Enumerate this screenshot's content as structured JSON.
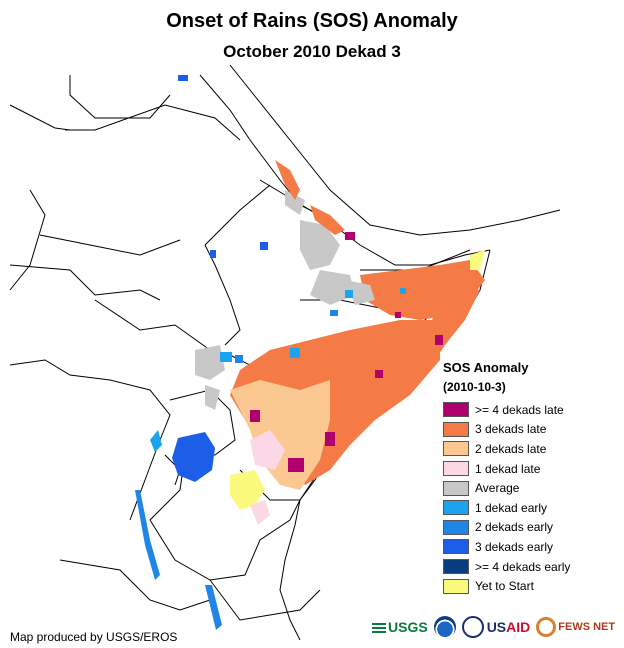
{
  "title": "Onset of Rains (SOS) Anomaly",
  "subtitle": "October 2010 Dekad 3",
  "legend": {
    "title": "SOS Anomaly",
    "date": "(2010-10-3)",
    "items": [
      {
        "label": ">= 4 dekads late",
        "color": "#b0006e"
      },
      {
        "label": "3 dekads late",
        "color": "#f47b46"
      },
      {
        "label": "2 dekads late",
        "color": "#fcc891"
      },
      {
        "label": "1 dekad late",
        "color": "#fcd7e6"
      },
      {
        "label": "Average",
        "color": "#c8c8c8"
      },
      {
        "label": "1 dekad early",
        "color": "#1ba3f0"
      },
      {
        "label": "2 dekads early",
        "color": "#1f86e8"
      },
      {
        "label": "3 dekads early",
        "color": "#1d5ee8"
      },
      {
        "label": ">= 4 dekads early",
        "color": "#0a3c80"
      },
      {
        "label": "Yet to Start",
        "color": "#fafa7c"
      }
    ]
  },
  "credit": "Map produced by USGS/EROS",
  "logos": {
    "usgs": "USGS",
    "usaid_a": "US",
    "usaid_b": "AID",
    "fews": "FEWS NET"
  },
  "icons": [
    "usgs-logo-icon",
    "noaa-logo-icon",
    "usaid-seal-icon",
    "fews-net-logo-icon"
  ]
}
